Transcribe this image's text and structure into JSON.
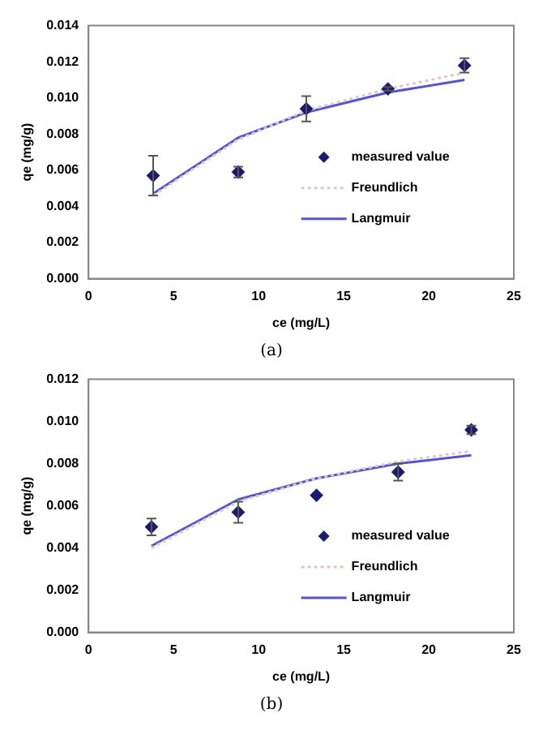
{
  "chart_data": [
    {
      "type": "scatter",
      "xlabel": "ce (mg/L)",
      "ylabel": "qe (mg/g)",
      "annotations": [
        "(a)"
      ],
      "xlim": [
        0,
        25
      ],
      "xticks": [
        0,
        5,
        10,
        15,
        20,
        25
      ],
      "ylim": [
        0,
        0.014
      ],
      "yticks": [
        {
          "value": 0,
          "label": "0.000"
        },
        {
          "value": 0.002,
          "label": "0.002"
        },
        {
          "value": 0.004,
          "label": "0.004"
        },
        {
          "value": 0.006,
          "label": "0.006"
        },
        {
          "value": 0.008,
          "label": "0.008"
        },
        {
          "value": 0.01,
          "label": "0.010"
        },
        {
          "value": 0.012,
          "label": "0.012"
        },
        {
          "value": 0.014,
          "label": "0.014"
        }
      ],
      "grid": false,
      "legend": "right",
      "series": [
        {
          "name": "measured value",
          "type": "scatter",
          "marker": "diamond",
          "color": "#1a1a6e",
          "x": [
            3.8,
            8.8,
            12.8,
            17.6,
            22.1
          ],
          "values": [
            0.0057,
            0.0059,
            0.0094,
            0.0105,
            0.0118
          ],
          "errors": [
            [
              0.0046,
              0.0068
            ],
            0.0003,
            [
              0.0087,
              0.0101
            ],
            0.0001,
            0.0004
          ]
        },
        {
          "name": "Freundlich",
          "type": "line",
          "line_style": "dotted",
          "color": "#e0c8c8",
          "x": [
            3.8,
            8.8,
            12.8,
            17.6,
            22.1
          ],
          "values": [
            0.0046,
            0.0077,
            0.0093,
            0.0105,
            0.0114
          ]
        },
        {
          "name": "Langmuir",
          "type": "line",
          "line_style": "solid",
          "color": "#5555cc",
          "x": [
            3.8,
            8.8,
            12.8,
            17.6,
            22.1
          ],
          "values": [
            0.0047,
            0.0078,
            0.0092,
            0.0103,
            0.011
          ]
        }
      ]
    },
    {
      "type": "scatter",
      "xlabel": "ce (mg/L)",
      "ylabel": "qe (mg/g)",
      "annotations": [
        "(b)"
      ],
      "xlim": [
        0,
        25
      ],
      "xticks": [
        0,
        5,
        10,
        15,
        20,
        25
      ],
      "ylim": [
        0,
        0.012
      ],
      "yticks": [
        {
          "value": 0,
          "label": "0.000"
        },
        {
          "value": 0.002,
          "label": "0.002"
        },
        {
          "value": 0.004,
          "label": "0.004"
        },
        {
          "value": 0.006,
          "label": "0.006"
        },
        {
          "value": 0.008,
          "label": "0.008"
        },
        {
          "value": 0.01,
          "label": "0.010"
        },
        {
          "value": 0.012,
          "label": "0.012"
        }
      ],
      "grid": false,
      "legend": "bottom right",
      "series": [
        {
          "name": "measured value",
          "type": "scatter",
          "marker": "diamond",
          "color": "#1a1a6e",
          "x": [
            3.7,
            8.8,
            13.4,
            18.2,
            22.5
          ],
          "values": [
            0.005,
            0.0057,
            0.0065,
            0.0076,
            0.0096
          ],
          "errors": [
            0.0004,
            0.0005,
            null,
            0.0004,
            0.0002
          ]
        },
        {
          "name": "Freundlich",
          "type": "line",
          "line_style": "dotted",
          "color": "#e0c8c8",
          "x": [
            3.7,
            8.8,
            13.4,
            18.2,
            22.5
          ],
          "values": [
            0.004,
            0.0062,
            0.0073,
            0.0081,
            0.0086
          ]
        },
        {
          "name": "Langmuir",
          "type": "line",
          "line_style": "solid",
          "color": "#5555cc",
          "x": [
            3.7,
            8.8,
            13.4,
            18.2,
            22.5
          ],
          "values": [
            0.0041,
            0.0063,
            0.0073,
            0.008,
            0.0084
          ]
        }
      ]
    }
  ]
}
